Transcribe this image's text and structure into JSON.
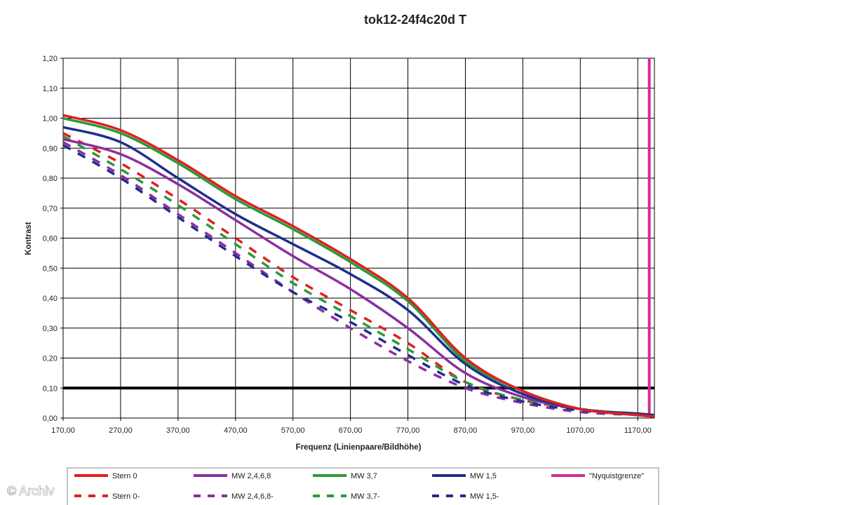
{
  "chart_data": {
    "type": "line",
    "title": "tok12-24f4c20d T",
    "xlabel": "Frequenz (Linienpaare/Bildhöhe)",
    "ylabel": "Kontrast",
    "xlim": [
      170,
      1199
    ],
    "ylim": [
      0,
      1.2
    ],
    "grid": true,
    "x_ticks": [
      "170,00",
      "270,00",
      "370,00",
      "470,00",
      "570,00",
      "670,00",
      "770,00",
      "870,00",
      "970,00",
      "1070,00",
      "1170,00"
    ],
    "y_ticks": [
      "0,00",
      "0,10",
      "0,20",
      "0,30",
      "0,40",
      "0,50",
      "0,60",
      "0,70",
      "0,80",
      "0,90",
      "1,00",
      "1,10",
      "1,20"
    ],
    "x": [
      170,
      270,
      370,
      470,
      570,
      670,
      770,
      870,
      970,
      1070,
      1170,
      1200
    ],
    "reference_line": {
      "y": 0.1,
      "color": "#000000"
    },
    "nyquist_line": {
      "name": "\"Nyquistgrenze\"",
      "x": 1190,
      "color": "#d22c94"
    },
    "series": [
      {
        "name": "Stern 0",
        "color": "#e02020",
        "dashed": false,
        "values": [
          1.01,
          0.96,
          0.86,
          0.74,
          0.64,
          0.53,
          0.4,
          0.2,
          0.09,
          0.03,
          0.01,
          0.005
        ]
      },
      {
        "name": "MW 2,4,6,8",
        "color": "#8b2fa0",
        "dashed": false,
        "values": [
          0.93,
          0.88,
          0.78,
          0.66,
          0.54,
          0.43,
          0.3,
          0.15,
          0.07,
          0.03,
          0.01,
          0.005
        ]
      },
      {
        "name": "MW 3,7",
        "color": "#2a9a3a",
        "dashed": false,
        "values": [
          1.0,
          0.95,
          0.85,
          0.73,
          0.63,
          0.52,
          0.39,
          0.19,
          0.09,
          0.03,
          0.01,
          0.005
        ]
      },
      {
        "name": "MW 1,5",
        "color": "#1f2f8c",
        "dashed": false,
        "values": [
          0.97,
          0.92,
          0.8,
          0.68,
          0.58,
          0.48,
          0.36,
          0.18,
          0.08,
          0.03,
          0.015,
          0.01
        ]
      },
      {
        "name": "Stern 0-",
        "color": "#e02020",
        "dashed": true,
        "values": [
          0.95,
          0.85,
          0.73,
          0.6,
          0.47,
          0.36,
          0.25,
          0.12,
          0.06,
          0.03,
          0.01,
          0.005
        ]
      },
      {
        "name": "MW 2,4,6,8-",
        "color": "#8b2fa0",
        "dashed": true,
        "values": [
          0.92,
          0.81,
          0.68,
          0.55,
          0.42,
          0.3,
          0.19,
          0.1,
          0.05,
          0.02,
          0.01,
          0.005
        ]
      },
      {
        "name": "MW 3,7-",
        "color": "#2a9a3a",
        "dashed": true,
        "values": [
          0.94,
          0.83,
          0.71,
          0.58,
          0.45,
          0.34,
          0.23,
          0.12,
          0.06,
          0.03,
          0.01,
          0.005
        ]
      },
      {
        "name": "MW 1,5-",
        "color": "#1f2f8c",
        "dashed": true,
        "values": [
          0.91,
          0.8,
          0.67,
          0.54,
          0.42,
          0.32,
          0.21,
          0.11,
          0.055,
          0.025,
          0.01,
          0.005
        ]
      }
    ],
    "legend": {
      "placement": "bottom",
      "entries": [
        {
          "label": "Stern 0",
          "color": "#e02020",
          "dashed": false
        },
        {
          "label": "MW 2,4,6,8",
          "color": "#8b2fa0",
          "dashed": false
        },
        {
          "label": "MW 3,7",
          "color": "#2a9a3a",
          "dashed": false
        },
        {
          "label": "MW 1,5",
          "color": "#1f2f8c",
          "dashed": false
        },
        {
          "label": "\"Nyquistgrenze\"",
          "color": "#d22c94",
          "dashed": false
        },
        {
          "label": "Stern 0-",
          "color": "#e02020",
          "dashed": true
        },
        {
          "label": "MW 2,4,6,8-",
          "color": "#8b2fa0",
          "dashed": true
        },
        {
          "label": "MW 3,7-",
          "color": "#2a9a3a",
          "dashed": true
        },
        {
          "label": "MW 1,5-",
          "color": "#1f2f8c",
          "dashed": true
        }
      ]
    }
  },
  "watermark": "© Archiv"
}
